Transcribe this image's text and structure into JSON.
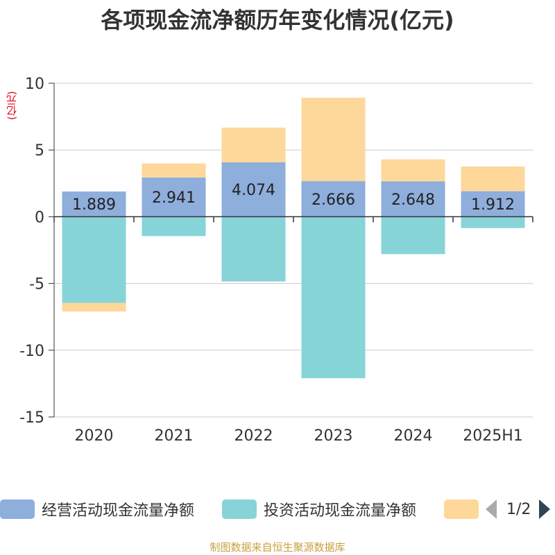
{
  "title": "各项现金流净额历年变化情况(亿元)",
  "unit_label": "(亿元)",
  "source": "制图数据来自恒生聚源数据库",
  "legend": {
    "items": [
      {
        "label": "经营活动现金流量净额",
        "color": "#8eaedc"
      },
      {
        "label": "投资活动现金流量净额",
        "color": "#86d4d8"
      },
      {
        "label": "",
        "color": "#fdd89a"
      }
    ],
    "page": "1/2"
  },
  "chart_data": {
    "type": "bar",
    "stacked": true,
    "categories": [
      "2020",
      "2021",
      "2022",
      "2023",
      "2024",
      "2025H1"
    ],
    "ylim": [
      -15,
      10
    ],
    "yticks": [
      10,
      5,
      0,
      -5,
      -10,
      -15
    ],
    "grid": true,
    "legend_position": "bottom",
    "series": [
      {
        "name": "经营活动现金流量净额",
        "color": "#8eaedc",
        "values": [
          1.889,
          2.941,
          4.074,
          2.666,
          2.648,
          1.912
        ],
        "labels": [
          "1.889",
          "2.941",
          "4.074",
          "2.666",
          "2.648",
          "1.912"
        ]
      },
      {
        "name": "投资活动现金流量净额",
        "color": "#86d4d8",
        "values": [
          -6.45,
          -1.45,
          -4.85,
          -12.1,
          -2.8,
          -0.85
        ]
      },
      {
        "color": "#fdd89a",
        "values": [
          -0.65,
          1.05,
          2.6,
          6.25,
          1.65,
          1.85
        ]
      }
    ]
  }
}
